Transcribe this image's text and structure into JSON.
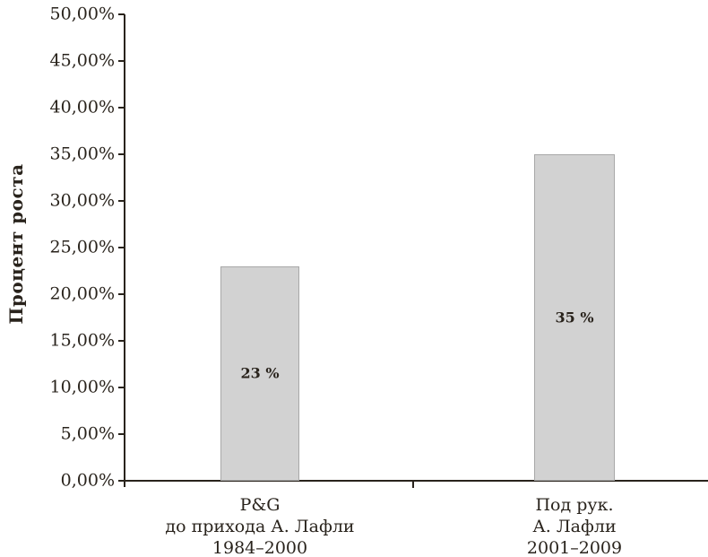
{
  "chart_data": {
    "type": "bar",
    "title": "",
    "xlabel": "",
    "ylabel": "Процент роста",
    "ylim": [
      0,
      50
    ],
    "ytick_step": 5,
    "ytick_labels": [
      "0,00%",
      "5,00%",
      "10,00%",
      "15,00%",
      "20,00%",
      "25,00%",
      "30,00%",
      "35,00%",
      "40,00%",
      "45,00%",
      "50,00%"
    ],
    "categories": [
      {
        "lines": [
          "P&G",
          "до прихода А. Лафли",
          "1984–2000"
        ]
      },
      {
        "lines": [
          "Под рук.",
          "А. Лафли",
          "2001–2009"
        ]
      }
    ],
    "values": [
      23,
      35
    ],
    "bar_labels": [
      "23 %",
      "35 %"
    ],
    "grid": false,
    "legend": false,
    "bar_color": "#d2d2d2",
    "bar_border_color": "#a8a8a8",
    "axis_color": "#29231c",
    "text_color": "#29231c",
    "background_color": "#ffffff"
  }
}
